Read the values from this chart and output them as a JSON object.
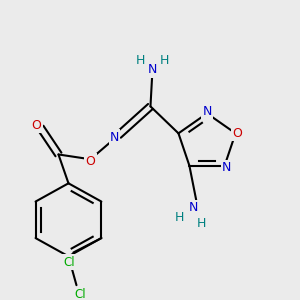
{
  "bg_color": "#ebebeb",
  "atom_colors": {
    "C": "#000000",
    "N": "#0000cc",
    "O": "#cc0000",
    "H": "#008080",
    "Cl": "#00aa00"
  },
  "bond_color": "#000000",
  "bond_width": 1.5
}
